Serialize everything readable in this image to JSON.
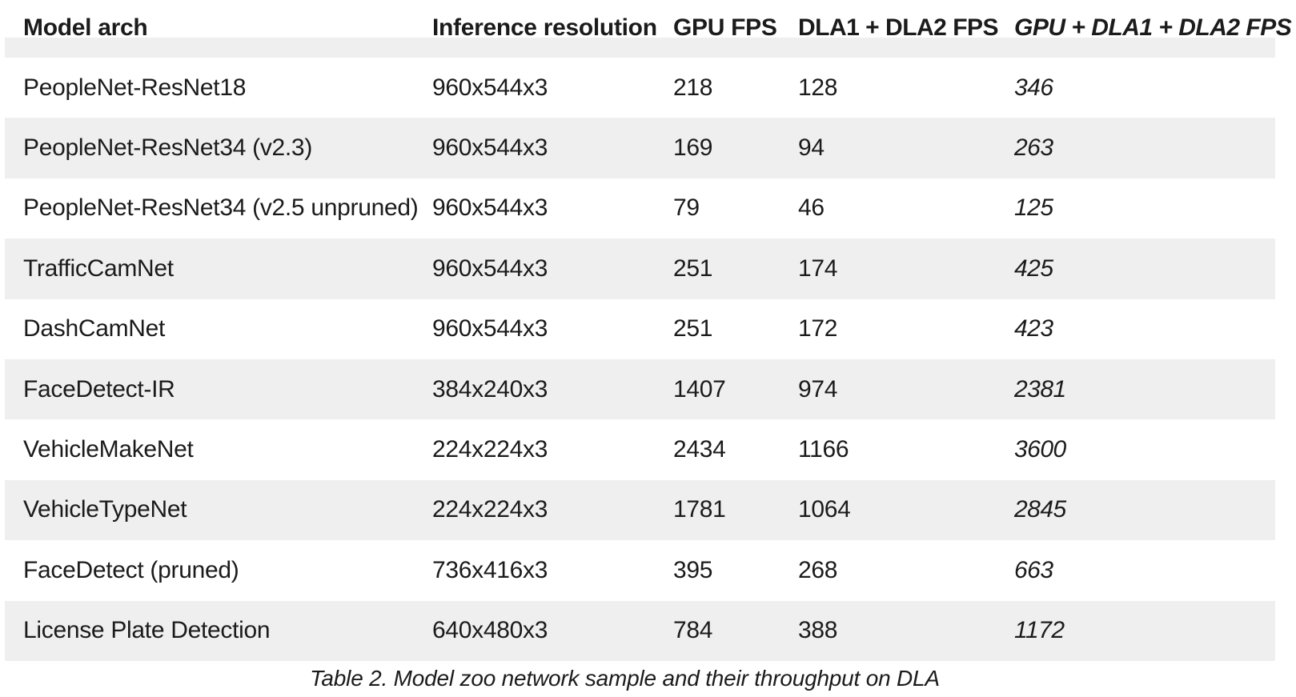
{
  "caption": "Table 2. Model zoo network sample and their throughput on DLA",
  "colors": {
    "background": "#ffffff",
    "stripe": "#efefef",
    "text": "#1b1b1b"
  },
  "chart_data": {
    "type": "table",
    "title": "Table 2. Model zoo network sample and their throughput on DLA",
    "columns": [
      "Model arch",
      "Inference resolution",
      "GPU FPS",
      "DLA1 + DLA2 FPS",
      "GPU + DLA1 + DLA2 FPS"
    ],
    "rows": [
      [
        "PeopleNet-ResNet18",
        "960x544x3",
        "218",
        "128",
        "346"
      ],
      [
        "PeopleNet-ResNet34 (v2.3)",
        "960x544x3",
        "169",
        "94",
        "263"
      ],
      [
        "PeopleNet-ResNet34 (v2.5 unpruned)",
        "960x544x3",
        "79",
        "46",
        "125"
      ],
      [
        "TrafficCamNet",
        "960x544x3",
        "251",
        "174",
        "425"
      ],
      [
        "DashCamNet",
        "960x544x3",
        "251",
        "172",
        "423"
      ],
      [
        "FaceDetect-IR",
        "384x240x3",
        "1407",
        "974",
        "2381"
      ],
      [
        "VehicleMakeNet",
        "224x224x3",
        "2434",
        "1166",
        "3600"
      ],
      [
        "VehicleTypeNet",
        "224x224x3",
        "1781",
        "1064",
        "2845"
      ],
      [
        "FaceDetect (pruned)",
        "736x416x3",
        "395",
        "268",
        "663"
      ],
      [
        "License Plate Detection",
        "640x480x3",
        "784",
        "388",
        "1172"
      ]
    ],
    "notes": {
      "last_column_style": "italic",
      "stripe_pattern": "even data rows gray"
    }
  }
}
